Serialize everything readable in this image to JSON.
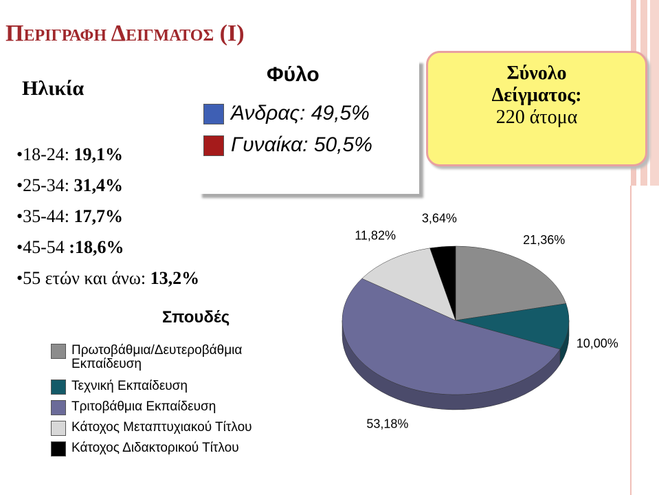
{
  "title": "Περιγραφη Δειγματος (Ι)",
  "age": {
    "title": "Ηλικία",
    "items": [
      {
        "label": "18-24:",
        "value": "19,1%"
      },
      {
        "label": "25-34:",
        "value": "31,4%"
      },
      {
        "label": "35-44:",
        "value": "17,7%"
      },
      {
        "label": "45-54",
        "value": ":18,6%"
      },
      {
        "label": "55 ετών και άνω:",
        "value": "13,2%"
      }
    ]
  },
  "gender": {
    "title": "Φύλο",
    "items": [
      {
        "label": "Άνδρας:",
        "value": "49,5%",
        "color": "#3e5fb4"
      },
      {
        "label": "Γυναίκα:",
        "value": "50,5%",
        "color": "#a51b1b"
      }
    ]
  },
  "sample": {
    "title": "Σύνολο Δείγματος:",
    "value": "220 άτομα"
  },
  "chart_data": {
    "type": "pie",
    "title": "Σπουδές",
    "categories": [
      "Πρωτοβάθμια/Δευτεροβάθμια Εκπαίδευση",
      "Τεχνική Εκπαίδευση",
      "Τριτοβάθμια Εκπαίδευση",
      "Κάτοχος Μεταπτυχιακού Τίτλου",
      "Κάτοχος Διδακτορικού Τίτλου"
    ],
    "values": [
      21.36,
      10.0,
      53.18,
      11.82,
      3.64
    ],
    "value_labels": [
      "21,36%",
      "10,00%",
      "53,18%",
      "11,82%",
      "3,64%"
    ],
    "colors": [
      "#8c8c8c",
      "#145a68",
      "#6b6b99",
      "#d8d8d8",
      "#000000"
    ]
  }
}
